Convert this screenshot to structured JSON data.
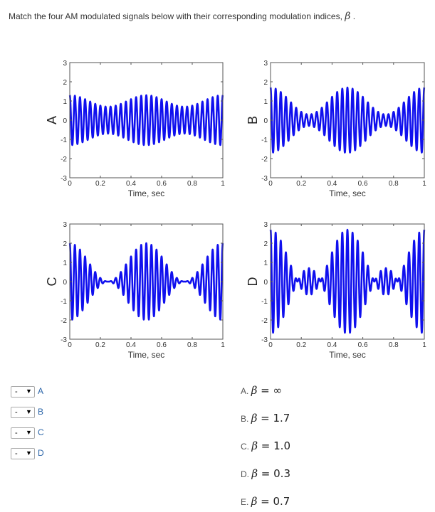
{
  "question": {
    "text": "Match the four AM modulated signals below with their corresponding modulation indices,",
    "symbol": "β",
    "end": "."
  },
  "chart_data": [
    {
      "type": "line",
      "label": "A",
      "xlabel": "Time, sec",
      "xlim": [
        0,
        1
      ],
      "ylim": [
        -3,
        3
      ],
      "xticks": [
        "0",
        "0.2",
        "0.4",
        "0.6",
        "0.8",
        "1"
      ],
      "yticks": [
        "3",
        "2",
        "1",
        "0",
        "-1",
        "-2",
        "-3"
      ],
      "signal": {
        "carrier_hz": 30,
        "mod_hz": 2,
        "beta": 0.3
      },
      "color": "#1010ee"
    },
    {
      "type": "line",
      "label": "B",
      "xlabel": "Time, sec",
      "xlim": [
        0,
        1
      ],
      "ylim": [
        -3,
        3
      ],
      "xticks": [
        "0",
        "0.2",
        "0.4",
        "0.6",
        "0.8",
        "1"
      ],
      "yticks": [
        "3",
        "2",
        "1",
        "0",
        "-1",
        "-2",
        "-3"
      ],
      "signal": {
        "carrier_hz": 30,
        "mod_hz": 2,
        "beta": 0.7
      },
      "color": "#1010ee"
    },
    {
      "type": "line",
      "label": "C",
      "xlabel": "Time, sec",
      "xlim": [
        0,
        1
      ],
      "ylim": [
        -3,
        3
      ],
      "xticks": [
        "0",
        "0.2",
        "0.4",
        "0.6",
        "0.8",
        "1"
      ],
      "yticks": [
        "3",
        "2",
        "1",
        "0",
        "-1",
        "-2",
        "-3"
      ],
      "signal": {
        "carrier_hz": 30,
        "mod_hz": 2,
        "beta": 1.0
      },
      "color": "#1010ee"
    },
    {
      "type": "line",
      "label": "D",
      "xlabel": "Time, sec",
      "xlim": [
        0,
        1
      ],
      "ylim": [
        -3,
        3
      ],
      "xticks": [
        "0",
        "0.2",
        "0.4",
        "0.6",
        "0.8",
        "1"
      ],
      "yticks": [
        "3",
        "2",
        "1",
        "0",
        "-1",
        "-2",
        "-3"
      ],
      "signal": {
        "carrier_hz": 30,
        "mod_hz": 2,
        "beta": 1.7
      },
      "color": "#1010ee"
    }
  ],
  "selects": [
    {
      "value": "-",
      "label": "A"
    },
    {
      "value": "-",
      "label": "B"
    },
    {
      "value": "-",
      "label": "C"
    },
    {
      "value": "-",
      "label": "D"
    }
  ],
  "answers": [
    {
      "key": "A.",
      "symbol": "β",
      "value": "= ∞"
    },
    {
      "key": "B.",
      "symbol": "β",
      "value": "= 1.7"
    },
    {
      "key": "C.",
      "symbol": "β",
      "value": "= 1.0"
    },
    {
      "key": "D.",
      "symbol": "β",
      "value": "= 0.3"
    },
    {
      "key": "E.",
      "symbol": "β",
      "value": "= 0.7"
    }
  ]
}
